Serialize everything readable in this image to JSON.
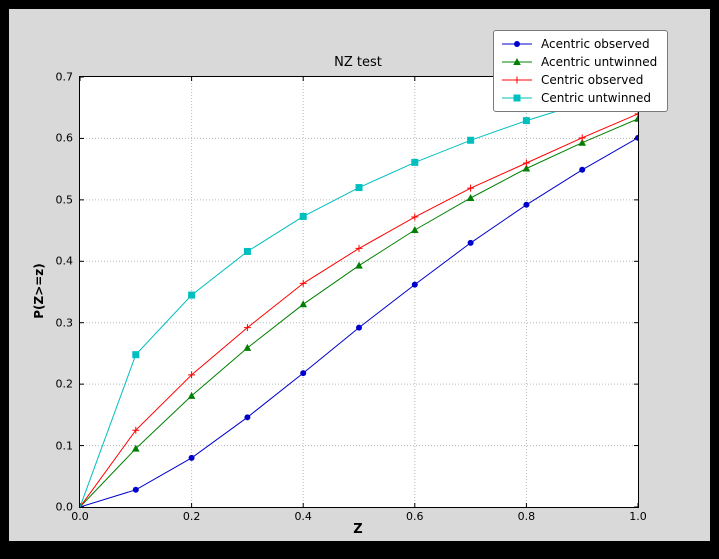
{
  "window": {
    "background": "#000000",
    "figure_background": "#d9d9d9",
    "plot_background": "#ffffff",
    "grid_color": "#b8b8b8"
  },
  "chart_data": {
    "type": "line",
    "title": "NZ test",
    "xlabel": "Z",
    "ylabel": "P(Z>=z)",
    "xlim": [
      0.0,
      1.0
    ],
    "ylim": [
      0.0,
      0.7
    ],
    "xticks": [
      "0.0",
      "0.2",
      "0.4",
      "0.6",
      "0.8",
      "1.0"
    ],
    "yticks": [
      "0.0",
      "0.1",
      "0.2",
      "0.3",
      "0.4",
      "0.5",
      "0.6",
      "0.7"
    ],
    "grid": true,
    "legend_position": "upper right (outside top-right corner of axes)",
    "x": [
      0.0,
      0.1,
      0.2,
      0.3,
      0.4,
      0.5,
      0.6,
      0.7,
      0.8,
      0.9,
      1.0
    ],
    "series": [
      {
        "name": "Acentric observed",
        "color": "#0000cd",
        "marker": "circle",
        "values": [
          0.0,
          0.028,
          0.08,
          0.146,
          0.218,
          0.292,
          0.362,
          0.43,
          0.492,
          0.549,
          0.601
        ]
      },
      {
        "name": "Acentric untwinned",
        "color": "#008000",
        "marker": "triangle",
        "values": [
          0.0,
          0.095,
          0.181,
          0.259,
          0.33,
          0.393,
          0.451,
          0.503,
          0.551,
          0.593,
          0.632
        ]
      },
      {
        "name": "Centric observed",
        "color": "#ff0000",
        "marker": "plus",
        "values": [
          0.0,
          0.125,
          0.215,
          0.292,
          0.364,
          0.421,
          0.472,
          0.519,
          0.56,
          0.601,
          0.64
        ]
      },
      {
        "name": "Centric untwinned",
        "color": "#00bfbf",
        "marker": "square",
        "values": [
          0.0,
          0.248,
          0.345,
          0.416,
          0.473,
          0.52,
          0.561,
          0.597,
          0.629,
          0.657,
          0.683
        ]
      }
    ]
  }
}
